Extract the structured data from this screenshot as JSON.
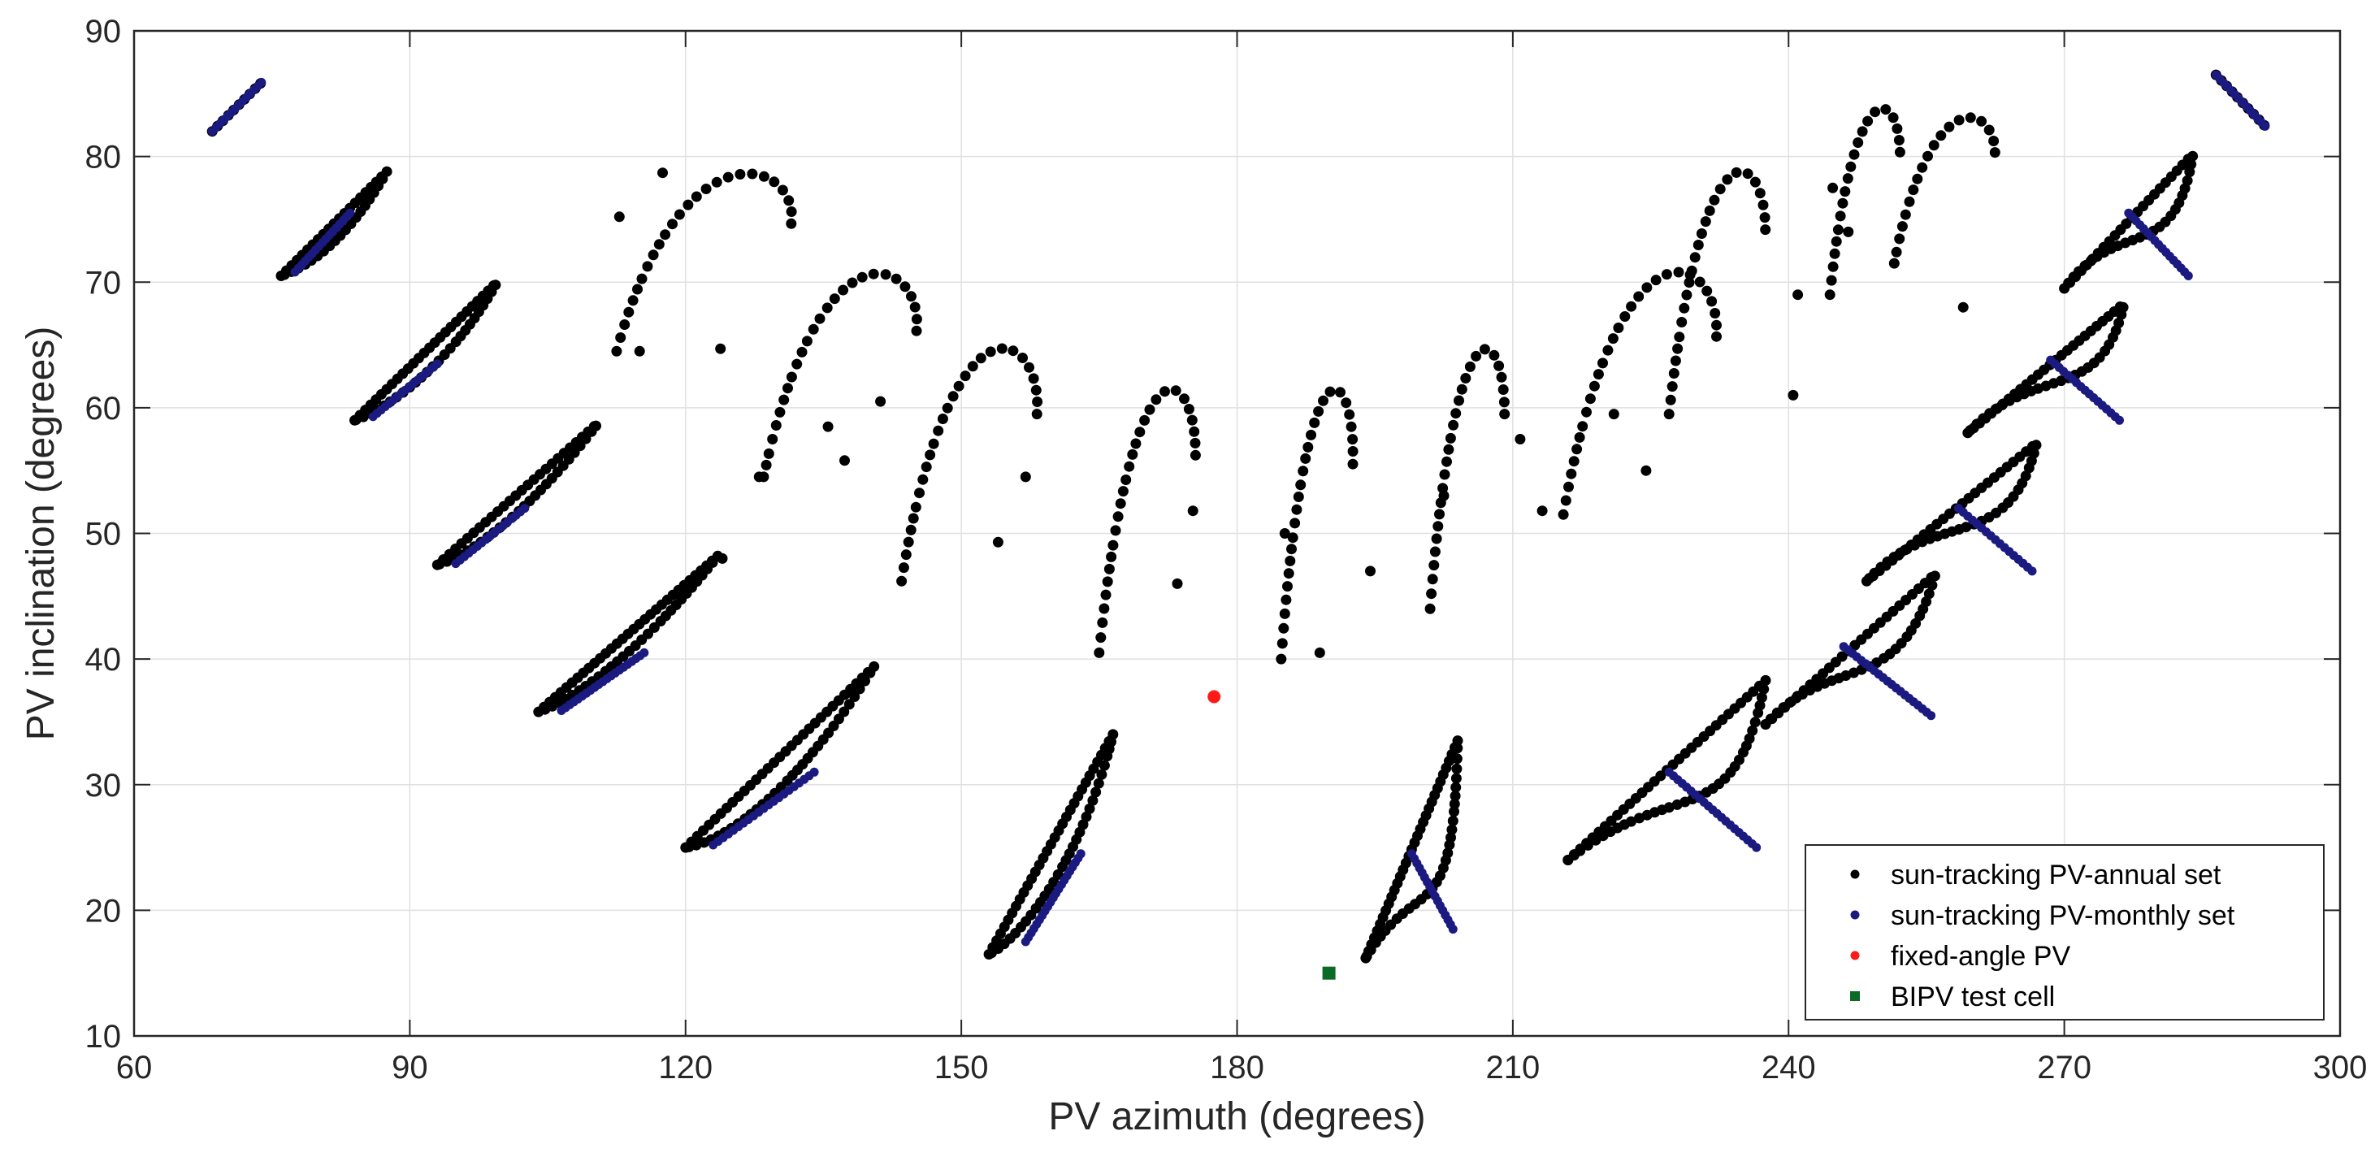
{
  "chart_data": {
    "type": "scatter",
    "title": "",
    "xlabel": "PV azimuth (degrees)",
    "ylabel": "PV inclination (degrees)",
    "xlim": [
      60,
      300
    ],
    "ylim": [
      10,
      90
    ],
    "xticks": [
      60,
      90,
      120,
      150,
      180,
      210,
      240,
      270,
      300
    ],
    "yticks": [
      10,
      20,
      30,
      40,
      50,
      60,
      70,
      80,
      90
    ],
    "grid": true,
    "legend_position": "bottom-right",
    "colors": {
      "annual": "#000000",
      "monthly": "#1a1a80",
      "fixed": "#ff1a1a",
      "bipv": "#0a6b26",
      "axis": "#262626",
      "grid": "#e0e0e0"
    },
    "series": [
      {
        "name": "sun-tracking PV-annual set",
        "marker": "circle",
        "loops": [
          {
            "ax": [
              68.5,
              74
            ],
            "ay": [
              82,
              86
            ],
            "ret": [],
            "o": 0
          },
          {
            "ax": [
              76,
              87.5
            ],
            "ay": [
              70.5,
              78.8
            ],
            "ret": [
              [
                80,
                71.5
              ],
              [
                84,
                74.3
              ]
            ],
            "o": 0.9
          },
          {
            "ax": [
              84,
              99.5
            ],
            "ay": [
              59,
              70
            ],
            "ret": [
              [
                88,
                60
              ],
              [
                95,
                64
              ]
            ],
            "o": 0.9
          },
          {
            "ax": [
              93,
              110.5
            ],
            "ay": [
              47.5,
              58.8
            ],
            "ret": [
              [
                97,
                48.3
              ],
              [
                104,
                52.5
              ]
            ],
            "o": 0.9
          },
          {
            "ax": [
              104,
              123.5
            ],
            "ay": [
              35.8,
              48.2
            ],
            "ret": [
              [
                108,
                36.7
              ],
              [
                116,
                41.2
              ]
            ],
            "o": 0.9
          },
          {
            "ax": [
              120,
              140.5
            ],
            "ay": [
              25,
              39.4
            ],
            "ret": [
              [
                125,
                25.5
              ],
              [
                133,
                30.5
              ]
            ],
            "o": 0.9
          },
          {
            "ax": [
              153,
              166.5
            ],
            "ay": [
              16.5,
              34
            ],
            "ret": [
              [
                156,
                17.5
              ],
              [
                163,
                23.5
              ]
            ],
            "o": 0.9
          },
          {
            "ax": [
              194,
              204
            ],
            "ay": [
              16.2,
              33.5
            ],
            "ret": [
              [
                200,
                23.5
              ],
              [
                203.5,
                17.5
              ]
            ],
            "o": 0.9
          },
          {
            "ax": [
              216,
              237.5
            ],
            "ay": [
              24,
              38.3
            ],
            "ret": [
              [
                228,
                31
              ],
              [
                234,
                25.5
              ]
            ],
            "o": 0.9
          },
          {
            "ax": [
              237.5,
              256
            ],
            "ay": [
              34.8,
              46.8
            ],
            "ret": [
              [
                245,
                40.8
              ],
              [
                252,
                36.5
              ]
            ],
            "o": 0.9
          },
          {
            "ax": [
              248.5,
              267
            ],
            "ay": [
              46.2,
              57.2
            ],
            "ret": [
              [
                256,
                52.3
              ],
              [
                264,
                48
              ]
            ],
            "o": 0.9
          },
          {
            "ax": [
              259.5,
              276.5
            ],
            "ay": [
              58,
              68.3
            ],
            "ret": [
              [
                267,
                63.8
              ],
              [
                274,
                60
              ]
            ],
            "o": 0.9
          },
          {
            "ax": [
              270,
              284
            ],
            "ay": [
              69.5,
              80.2
            ],
            "ret": [
              [
                276,
                75.5
              ],
              [
                282,
                71
              ]
            ],
            "o": 0.9
          },
          {
            "ax": [
              286.5,
              292
            ],
            "ay": [
              86.5,
              82.3
            ],
            "ret": [],
            "o": 0
          }
        ],
        "arches": [
          {
            "ax": [
              112.5,
              132.5
            ],
            "ay": [
              64.5,
              79.0
            ]
          },
          {
            "ax": [
              128.5,
              146
            ],
            "ay": [
              54.5,
              71.1
            ]
          },
          {
            "ax": [
              143.5,
              159
            ],
            "ay": [
              46.2,
              65.2
            ]
          },
          {
            "ax": [
              165,
              176
            ],
            "ay": [
              40.5,
              62.0
            ]
          },
          {
            "ax": [
              184.8,
              193
            ],
            "ay": [
              40.0,
              62.0
            ]
          },
          {
            "ax": [
              201,
              209.5
            ],
            "ay": [
              44.0,
              65.2
            ]
          },
          {
            "ax": [
              215.5,
              233
            ],
            "ay": [
              51.5,
              71.3
            ]
          },
          {
            "ax": [
              227,
              238
            ],
            "ay": [
              59.5,
              79.3
            ]
          },
          {
            "ax": [
              244.5,
              252.5
            ],
            "ay": [
              69.0,
              84.2
            ]
          },
          {
            "ax": [
              251.5,
              263
            ],
            "ay": [
              71.5,
              83.4
            ]
          }
        ],
        "x": [
          112.8,
          117.5,
          115.0,
          123.8,
          124.0,
          128.0,
          135.5,
          137.3,
          141.2,
          154.0,
          157.0,
          173.5,
          175.2,
          185.2,
          189.0,
          194.5,
          202.5,
          210.8,
          213.2,
          221.0,
          224.5,
          240.5,
          241.0,
          244.8,
          246.5,
          259.0
        ],
        "y": [
          75.2,
          78.7,
          64.5,
          64.7,
          48.0,
          54.5,
          58.5,
          55.8,
          60.5,
          49.3,
          54.5,
          46.0,
          51.8,
          50.0,
          40.5,
          47.0,
          53.0,
          57.5,
          51.8,
          59.5,
          55.0,
          61.0,
          69.0,
          77.5,
          74.0,
          68.0
        ]
      },
      {
        "name": "sun-tracking PV-monthly set",
        "marker": "circle",
        "segments": [
          {
            "x0": 68.5,
            "y0": 82.0,
            "x1": 74.0,
            "y1": 86.0
          },
          {
            "x0": 77.5,
            "y0": 70.8,
            "x1": 83.5,
            "y1": 75.5
          },
          {
            "x0": 86.0,
            "y0": 59.3,
            "x1": 93.0,
            "y1": 63.5
          },
          {
            "x0": 95.0,
            "y0": 47.6,
            "x1": 102.5,
            "y1": 52.0
          },
          {
            "x0": 106.5,
            "y0": 35.9,
            "x1": 115.5,
            "y1": 40.5
          },
          {
            "x0": 123.0,
            "y0": 25.2,
            "x1": 134.0,
            "y1": 31.0
          },
          {
            "x0": 157.0,
            "y0": 17.5,
            "x1": 163.0,
            "y1": 24.5
          },
          {
            "x0": 199.0,
            "y0": 24.5,
            "x1": 203.5,
            "y1": 18.5
          },
          {
            "x0": 227.0,
            "y0": 31.0,
            "x1": 236.5,
            "y1": 25.0
          },
          {
            "x0": 246.0,
            "y0": 41.0,
            "x1": 255.5,
            "y1": 35.5
          },
          {
            "x0": 258.5,
            "y0": 52.0,
            "x1": 266.5,
            "y1": 47.0
          },
          {
            "x0": 268.5,
            "y0": 63.8,
            "x1": 276.0,
            "y1": 59.0
          },
          {
            "x0": 277.0,
            "y0": 75.5,
            "x1": 283.5,
            "y1": 70.5
          },
          {
            "x0": 286.5,
            "y0": 86.5,
            "x1": 292.0,
            "y1": 82.3
          }
        ]
      },
      {
        "name": "fixed-angle PV",
        "marker": "circle",
        "x": [
          177.5
        ],
        "y": [
          37.0
        ]
      },
      {
        "name": "BIPV test cell",
        "marker": "square",
        "x": [
          190.0
        ],
        "y": [
          15.0
        ]
      }
    ]
  }
}
